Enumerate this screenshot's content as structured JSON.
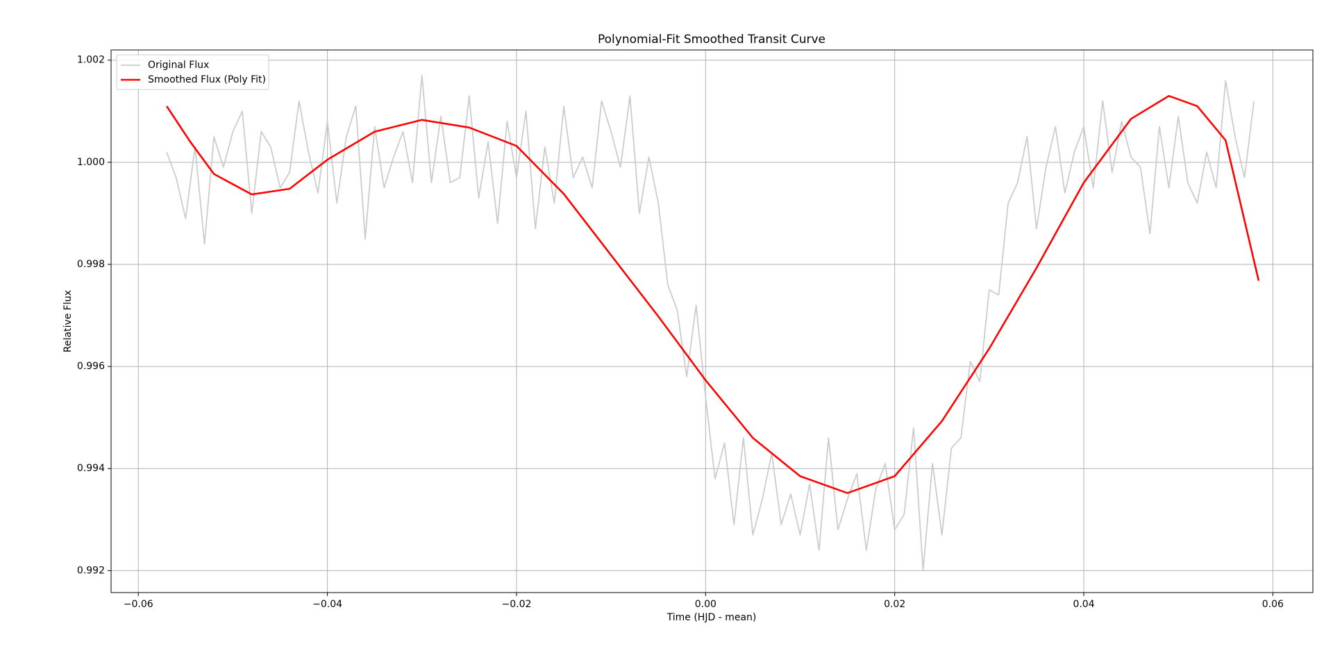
{
  "chart_data": {
    "type": "line",
    "title": "Polynomial-Fit Smoothed Transit Curve",
    "x_label": "Time (HJD - mean)",
    "y_label": "Relative Flux",
    "xlim": [
      -0.06288,
      0.06423
    ],
    "ylim": [
      0.99157,
      1.0022
    ],
    "xticks": [
      {
        "value": -0.06,
        "label": "−0.06"
      },
      {
        "value": -0.04,
        "label": "−0.04"
      },
      {
        "value": -0.02,
        "label": "−0.02"
      },
      {
        "value": 0,
        "label": "0.00"
      },
      0.02,
      0.04,
      0.06
    ],
    "yticks": [
      0.992,
      0.994,
      0.996,
      0.998,
      {
        "value": 1,
        "label": "1.000"
      },
      1.002
    ],
    "grid": true,
    "legend": "upper left",
    "series": [
      {
        "name": "Original Flux",
        "color": "#cccccc",
        "x": [
          -0.057,
          -0.056,
          -0.055,
          -0.054,
          -0.053,
          -0.052,
          -0.051,
          -0.05,
          -0.049,
          -0.048,
          -0.047,
          -0.046,
          -0.045,
          -0.044,
          -0.043,
          -0.042,
          -0.041,
          -0.04,
          -0.039,
          -0.038,
          -0.037,
          -0.036,
          -0.035,
          -0.034,
          -0.033,
          -0.032,
          -0.031,
          -0.03,
          -0.029,
          -0.028,
          -0.027,
          -0.026,
          -0.025,
          -0.024,
          -0.023,
          -0.022,
          -0.021,
          -0.02,
          -0.019,
          -0.018,
          -0.017,
          -0.016,
          -0.015,
          -0.014,
          -0.013,
          -0.012,
          -0.011,
          -0.01,
          -0.009,
          -0.008,
          -0.007,
          -0.006,
          -0.005,
          -0.004,
          -0.003,
          -0.002,
          -0.001,
          0,
          0.001,
          0.002,
          0.003,
          0.004,
          0.005,
          0.006,
          0.007,
          0.008,
          0.009,
          0.01,
          0.011,
          0.012,
          0.013,
          0.014,
          0.015,
          0.016,
          0.017,
          0.018,
          0.019,
          0.02,
          0.021,
          0.022,
          0.023,
          0.024,
          0.025,
          0.026,
          0.027,
          0.028,
          0.029,
          0.03,
          0.031,
          0.032,
          0.033,
          0.034,
          0.035,
          0.036,
          0.037,
          0.038,
          0.039,
          0.04,
          0.041,
          0.042,
          0.043,
          0.044,
          0.045,
          0.046,
          0.047,
          0.048,
          0.049,
          0.05,
          0.051,
          0.052,
          0.053,
          0.054,
          0.055,
          0.056,
          0.057,
          0.058
        ],
        "values": [
          1.0002,
          0.9997,
          0.9989,
          1.0003,
          0.9984,
          1.0005,
          0.9999,
          1.0006,
          1.001,
          0.999,
          1.0006,
          1.0003,
          0.9995,
          0.9998,
          1.0012,
          1.0002,
          0.9994,
          1.0008,
          0.9992,
          1.0005,
          1.0011,
          0.9985,
          1.0007,
          0.9995,
          1.0001,
          1.0006,
          0.9996,
          1.0017,
          0.9996,
          1.0009,
          0.9996,
          0.9997,
          1.0013,
          0.9993,
          1.0004,
          0.9988,
          1.0008,
          0.9997,
          1.001,
          0.9987,
          1.0003,
          0.9992,
          1.0011,
          0.9997,
          1.0001,
          0.9995,
          1.0012,
          1.0006,
          0.9999,
          1.0013,
          0.999,
          1.0001,
          0.9992,
          0.9976,
          0.9971,
          0.9958,
          0.9972,
          0.9954,
          0.9938,
          0.9945,
          0.9929,
          0.9946,
          0.9927,
          0.9934,
          0.9943,
          0.9929,
          0.9935,
          0.9927,
          0.9937,
          0.9924,
          0.9946,
          0.9928,
          0.9934,
          0.9939,
          0.9924,
          0.9936,
          0.9941,
          0.9928,
          0.9931,
          0.9948,
          0.992,
          0.9941,
          0.9927,
          0.9944,
          0.9946,
          0.9961,
          0.9957,
          0.9975,
          0.9974,
          0.9992,
          0.9996,
          1.0005,
          0.9987,
          0.9999,
          1.0007,
          0.9994,
          1.0002,
          1.0007,
          0.9995,
          1.0012,
          0.9998,
          1.0008,
          1.0001,
          0.9999,
          0.9986,
          1.0007,
          0.9995,
          1.0009,
          0.9996,
          0.9992,
          1.0002,
          0.9995,
          1.0016,
          1.0005,
          0.9997,
          1.0012
        ]
      },
      {
        "name": "Smoothed Flux (Poly Fit)",
        "color": "#ff0000",
        "x": [
          -0.057,
          -0.0545,
          -0.052,
          -0.048,
          -0.044,
          -0.04,
          -0.035,
          -0.03,
          -0.025,
          -0.02,
          -0.015,
          -0.01,
          -0.005,
          0,
          0.005,
          0.01,
          0.015,
          0.02,
          0.025,
          0.03,
          0.035,
          0.04,
          0.045,
          0.049,
          0.052,
          0.055,
          0.0585
        ],
        "values": [
          1.0011,
          1.0004,
          0.99977,
          0.99937,
          0.99948,
          1.00005,
          1.0006,
          1.00083,
          1.00068,
          1.00032,
          0.99938,
          0.99818,
          0.99698,
          0.99573,
          0.9946,
          0.99385,
          0.99352,
          0.99385,
          0.99493,
          0.99635,
          0.99793,
          0.9996,
          1.00085,
          1.0013,
          1.0011,
          1.00043,
          0.99768
        ]
      }
    ]
  }
}
